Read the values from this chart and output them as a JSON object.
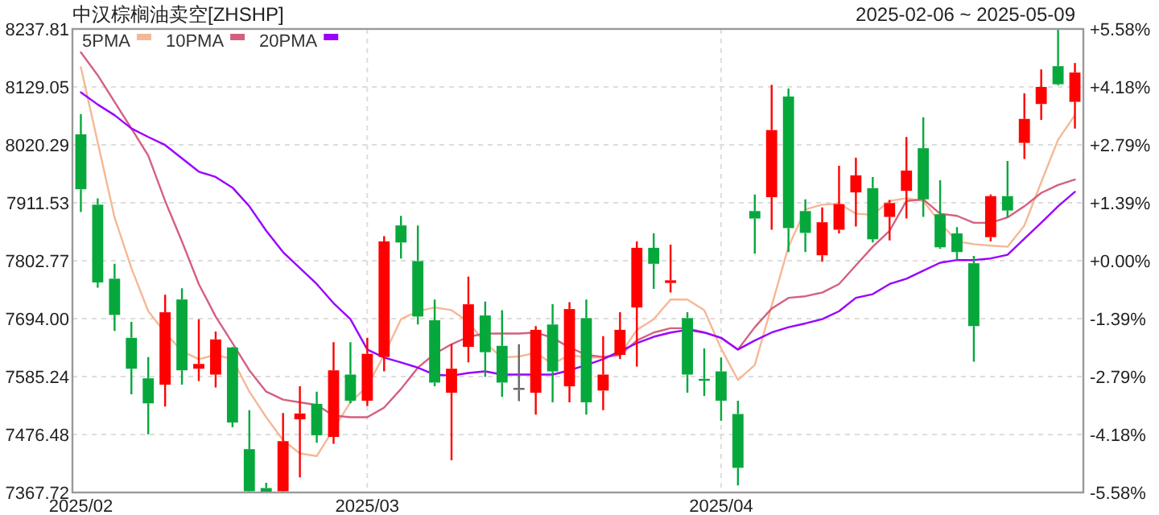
{
  "chart_data": {
    "type": "candlestick",
    "title": "中汉棕榈油卖空[ZHSHP]",
    "subtitle": "2025-02-06 ~ 2025-05-09",
    "categories": [
      "2025/02",
      null,
      null,
      null,
      null,
      null,
      null,
      null,
      null,
      null,
      null,
      null,
      null,
      null,
      null,
      null,
      null,
      "2025/03",
      null,
      null,
      null,
      null,
      null,
      null,
      null,
      null,
      null,
      null,
      null,
      null,
      null,
      null,
      null,
      null,
      null,
      null,
      null,
      null,
      "2025/04",
      null,
      null,
      null,
      null,
      null,
      null,
      null,
      null,
      null,
      null,
      null,
      null,
      null,
      null,
      null,
      null,
      null,
      null,
      null,
      null,
      null
    ],
    "ohlc": [
      [
        8040,
        8078,
        7894,
        7937
      ],
      [
        7908,
        7920,
        7752,
        7762
      ],
      [
        7769,
        7797,
        7671,
        7701
      ],
      [
        7658,
        7688,
        7552,
        7600
      ],
      [
        7582,
        7622,
        7477,
        7535
      ],
      [
        7570,
        7739,
        7529,
        7706
      ],
      [
        7730,
        7751,
        7570,
        7597
      ],
      [
        7600,
        7693,
        7577,
        7609
      ],
      [
        7589,
        7670,
        7565,
        7655
      ],
      [
        7640,
        7641,
        7490,
        7499
      ],
      [
        7449,
        7522,
        7368,
        7370
      ],
      [
        7376,
        7386,
        7368,
        7369
      ],
      [
        7370,
        7517,
        7368,
        7464
      ],
      [
        7505,
        7567,
        7396,
        7516
      ],
      [
        7534,
        7557,
        7461,
        7475
      ],
      [
        7472,
        7650,
        7459,
        7597
      ],
      [
        7589,
        7650,
        7535,
        7540
      ],
      [
        7540,
        7658,
        7530,
        7628
      ],
      [
        7622,
        7849,
        7595,
        7839
      ],
      [
        7869,
        7887,
        7807,
        7837
      ],
      [
        7802,
        7869,
        7683,
        7698
      ],
      [
        7691,
        7730,
        7567,
        7574
      ],
      [
        7555,
        7646,
        7428,
        7600
      ],
      [
        7641,
        7773,
        7612,
        7721
      ],
      [
        7700,
        7726,
        7585,
        7631
      ],
      [
        7643,
        7710,
        7547,
        7574
      ],
      [
        7564,
        7646,
        7539,
        7564
      ],
      [
        7555,
        7680,
        7514,
        7673
      ],
      [
        7683,
        7721,
        7537,
        7595
      ],
      [
        7567,
        7725,
        7537,
        7712
      ],
      [
        7695,
        7730,
        7514,
        7537
      ],
      [
        7559,
        7661,
        7522,
        7589
      ],
      [
        7626,
        7706,
        7618,
        7673
      ],
      [
        7715,
        7839,
        7604,
        7827
      ],
      [
        7827,
        7854,
        7750,
        7797
      ],
      [
        7761,
        7833,
        7743,
        7766
      ],
      [
        7695,
        7706,
        7555,
        7589
      ],
      [
        7581,
        7638,
        7549,
        7578
      ],
      [
        7595,
        7621,
        7502,
        7540
      ],
      [
        7515,
        7540,
        7381,
        7414
      ],
      [
        7896,
        7927,
        7816,
        7882
      ],
      [
        7922,
        8133,
        7861,
        8048
      ],
      [
        8111,
        8126,
        7819,
        7864
      ],
      [
        7896,
        7918,
        7819,
        7855
      ],
      [
        7813,
        7903,
        7801,
        7875
      ],
      [
        7861,
        7981,
        7854,
        7909
      ],
      [
        7931,
        7996,
        7867,
        7963
      ],
      [
        7939,
        7960,
        7837,
        7843
      ],
      [
        7885,
        7917,
        7841,
        7911
      ],
      [
        7934,
        8035,
        7882,
        7972
      ],
      [
        8014,
        8072,
        7885,
        7918
      ],
      [
        7890,
        7954,
        7825,
        7828
      ],
      [
        7854,
        7866,
        7804,
        7819
      ],
      [
        7798,
        7812,
        7613,
        7680
      ],
      [
        7847,
        7927,
        7839,
        7924
      ],
      [
        7924,
        7990,
        7884,
        7897
      ],
      [
        8024,
        8117,
        7994,
        8069
      ],
      [
        8097,
        8162,
        8067,
        8129
      ],
      [
        8168,
        8237,
        8132,
        8134
      ],
      [
        8101,
        8174,
        8051,
        8156
      ]
    ],
    "series": [
      {
        "name": "5PMA",
        "type": "line",
        "color": "#f5b895",
        "values": [
          8166,
          8025,
          7884,
          7789,
          7708,
          7668,
          7633,
          7618,
          7626,
          7618,
          7557,
          7509,
          7466,
          7441,
          7436,
          7487,
          7537,
          7567,
          7626,
          7693,
          7708,
          7715,
          7710,
          7688,
          7648,
          7621,
          7623,
          7630,
          7609,
          7626,
          7621,
          7621,
          7626,
          7673,
          7693,
          7730,
          7730,
          7710,
          7638,
          7579,
          7607,
          7718,
          7829,
          7899,
          7908,
          7910,
          7891,
          7889,
          7915,
          7920,
          7915,
          7874,
          7839,
          7834,
          7831,
          7829,
          7869,
          7950,
          8030,
          8076
        ]
      },
      {
        "name": "10PMA",
        "type": "line",
        "color": "#d4607f",
        "values": [
          8194,
          8151,
          8101,
          8051,
          8000,
          7915,
          7839,
          7759,
          7698,
          7648,
          7597,
          7557,
          7542,
          7537,
          7532,
          7512,
          7509,
          7509,
          7527,
          7562,
          7602,
          7628,
          7646,
          7660,
          7666,
          7666,
          7666,
          7668,
          7658,
          7640,
          7626,
          7622,
          7626,
          7653,
          7668,
          7676,
          7676,
          7668,
          7658,
          7636,
          7678,
          7713,
          7733,
          7736,
          7743,
          7759,
          7794,
          7829,
          7859,
          7915,
          7918,
          7891,
          7887,
          7874,
          7874,
          7884,
          7905,
          7930,
          7945,
          7955
        ]
      },
      {
        "name": "20PMA",
        "type": "line",
        "color": "#9900ff",
        "values": [
          8119,
          8096,
          8076,
          8051,
          8035,
          8020,
          7995,
          7970,
          7960,
          7940,
          7905,
          7859,
          7819,
          7789,
          7759,
          7723,
          7693,
          7636,
          7621,
          7612,
          7602,
          7589,
          7587,
          7592,
          7595,
          7589,
          7589,
          7589,
          7589,
          7597,
          7607,
          7618,
          7633,
          7648,
          7660,
          7668,
          7673,
          7668,
          7658,
          7636,
          7653,
          7668,
          7678,
          7685,
          7693,
          7708,
          7733,
          7740,
          7759,
          7769,
          7784,
          7799,
          7804,
          7804,
          7807,
          7814,
          7844,
          7874,
          7905,
          7932
        ]
      }
    ],
    "ylim": [
      7367.72,
      8237.81
    ],
    "yticks": [
      7367.72,
      7476.48,
      7585.24,
      {
        "value": 7694,
        "label": "7694.00"
      },
      7802.77,
      7911.53,
      8020.29,
      8129.05,
      8237.81
    ],
    "y2lim": [
      -5.58,
      5.58
    ],
    "y2ticks": [
      {
        "value": -5.58,
        "label": "-5.58%"
      },
      {
        "value": -4.18,
        "label": "-4.18%"
      },
      {
        "value": -2.79,
        "label": "-2.79%"
      },
      {
        "value": -1.39,
        "label": "-1.39%"
      },
      {
        "value": 0,
        "label": "+0.00%"
      },
      {
        "value": 1.39,
        "label": "+1.39%"
      },
      {
        "value": 2.79,
        "label": "+2.79%"
      },
      {
        "value": 4.18,
        "label": "+4.18%"
      },
      {
        "value": 5.58,
        "label": "+5.58%"
      }
    ],
    "grid": true,
    "legend": "top left"
  }
}
